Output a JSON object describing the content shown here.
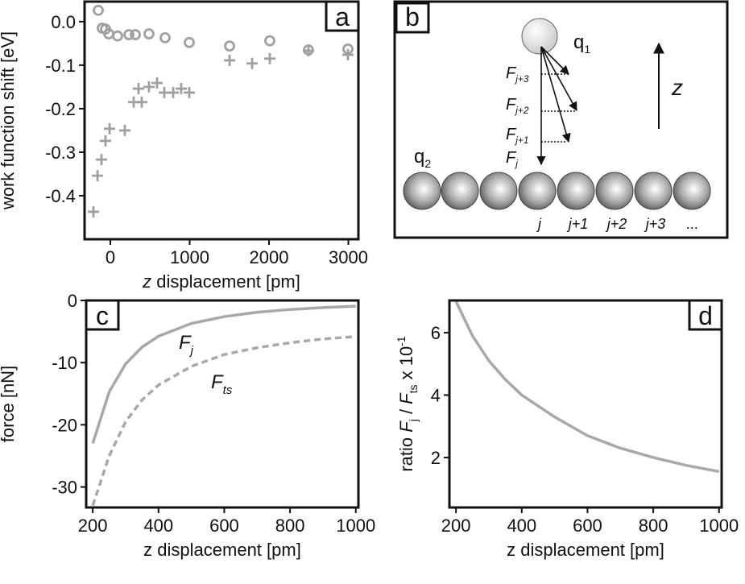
{
  "chart_data": [
    {
      "panel": "a",
      "type": "scatter",
      "xlabel_parts": [
        "z",
        " displacement [pm]"
      ],
      "ylabel": "work function shift [eV]",
      "xlim": [
        -325,
        3127
      ],
      "ylim": [
        -0.5,
        0.046
      ],
      "xticks": [
        0,
        1000,
        2000,
        3000
      ],
      "yticks": [
        {
          "value": 0,
          "label": "0.0"
        },
        -0.1,
        -0.2,
        -0.3,
        -0.4
      ],
      "series": [
        {
          "marker": "circle",
          "color": "#a0a0a0",
          "x": [
            -152,
            -102,
            -61,
            -20,
            91,
            234,
            315,
            487,
            690,
            995,
            1503,
            2010,
            2497,
            2995
          ],
          "y": [
            0.026,
            -0.015,
            -0.017,
            -0.028,
            -0.033,
            -0.03,
            -0.03,
            -0.028,
            -0.037,
            -0.048,
            -0.056,
            -0.044,
            -0.065,
            -0.063
          ]
        },
        {
          "marker": "cross",
          "color": "#a0a0a0",
          "x": [
            -213,
            -162,
            -112,
            -61,
            -10,
            183,
            294,
            396,
            355,
            487,
            589,
            680,
            792,
            893,
            995,
            1503,
            1787,
            2010,
            2497,
            2995
          ],
          "y": [
            -0.437,
            -0.354,
            -0.317,
            -0.274,
            -0.246,
            -0.25,
            -0.185,
            -0.185,
            -0.154,
            -0.15,
            -0.141,
            -0.163,
            -0.163,
            -0.154,
            -0.163,
            -0.089,
            -0.096,
            -0.085,
            -0.067,
            -0.076
          ]
        }
      ]
    },
    {
      "panel": "c",
      "type": "line",
      "xlabel": "z displacement [pm]",
      "ylabel": "force [nN]",
      "xlim": [
        180,
        1008
      ],
      "ylim": [
        -33.3,
        0
      ],
      "xticks": [
        200,
        400,
        600,
        800,
        1000
      ],
      "yticks": [
        0,
        -10,
        -20,
        -30
      ],
      "x": [
        200,
        250,
        300,
        350,
        400,
        500,
        600,
        700,
        800,
        900,
        1000
      ],
      "series": [
        {
          "color": "#a8a8a8",
          "dashed": false,
          "values": [
            -23,
            -14.7,
            -10.2,
            -7.5,
            -5.75,
            -3.7,
            -2.6,
            -1.9,
            -1.45,
            -1.15,
            -0.92
          ]
        },
        {
          "color": "#a8a8a8",
          "dashed": true,
          "values": [
            -33,
            -25,
            -19.5,
            -16,
            -13.6,
            -10.6,
            -8.7,
            -7.6,
            -6.8,
            -6.2,
            -5.8
          ]
        }
      ],
      "annotations": [
        {
          "text": "F",
          "sub": "j"
        },
        {
          "text": "F",
          "sub": "ts"
        }
      ]
    },
    {
      "panel": "d",
      "type": "line",
      "xlabel": "z displacement [pm]",
      "ylabel_parts": [
        "ratio ",
        "F",
        "j",
        " / ",
        "F",
        "ts",
        " x 10",
        "-1"
      ],
      "xlim": [
        180,
        1008
      ],
      "ylim": [
        0.4,
        7.03
      ],
      "xticks": [
        200,
        400,
        600,
        800,
        1000
      ],
      "yticks": [
        2,
        4,
        6
      ],
      "x": [
        200,
        250,
        300,
        350,
        400,
        500,
        600,
        700,
        800,
        900,
        1000
      ],
      "series": [
        {
          "color": "#a8a8a8",
          "dashed": false,
          "values": [
            7.0,
            5.9,
            5.1,
            4.5,
            4.0,
            3.3,
            2.7,
            2.3,
            2.0,
            1.75,
            1.55
          ]
        }
      ]
    }
  ],
  "diagram": {
    "panel": "b",
    "q1": {
      "text": "q",
      "sub": "1"
    },
    "q2": {
      "text": "q",
      "sub": "2"
    },
    "axis_label": "z",
    "forces": [
      {
        "text": "F",
        "sub": "j+3"
      },
      {
        "text": "F",
        "sub": "j+2"
      },
      {
        "text": "F",
        "sub": "j+1"
      },
      {
        "text": "F",
        "sub": "j"
      }
    ],
    "atom_labels": [
      "j",
      "j+1",
      "j+2",
      "j+3",
      "..."
    ]
  }
}
